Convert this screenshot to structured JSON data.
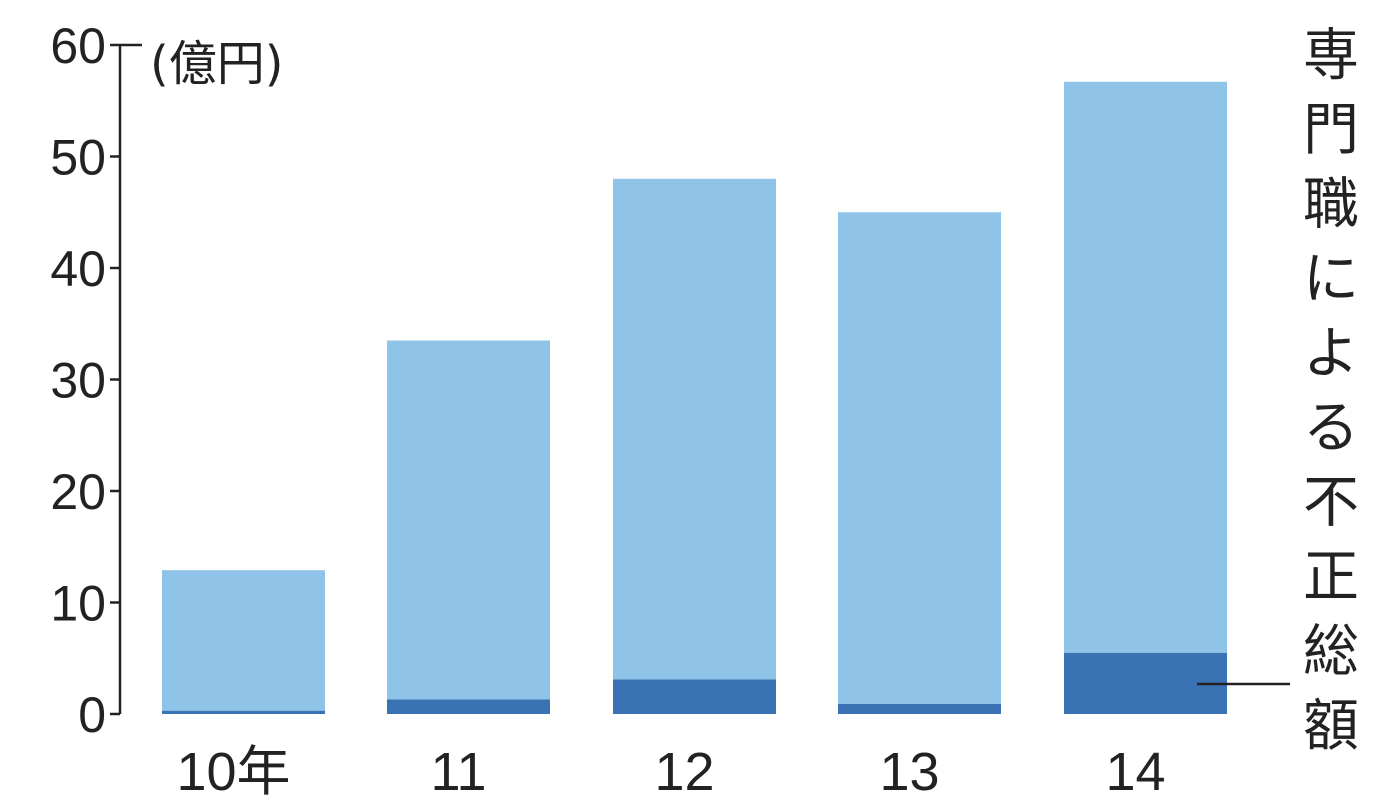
{
  "chart_data": {
    "type": "bar",
    "stacked": true,
    "categories": [
      "10年",
      "11",
      "12",
      "13",
      "14"
    ],
    "series": [
      {
        "values": [
          0.3,
          1.3,
          3.1,
          0.9,
          5.5
        ],
        "color": "#3a73b4"
      },
      {
        "values": [
          12.6,
          32.2,
          44.9,
          44.1,
          51.2
        ],
        "color": "#8fc4e8"
      }
    ],
    "totals": [
      12.9,
      33.5,
      48.0,
      45.0,
      56.7
    ],
    "ylim": [
      0,
      60
    ],
    "yticks": [
      0,
      10,
      20,
      30,
      40,
      50,
      60
    ],
    "unit_label": "(億円)",
    "annotation": "専門職による不正総額",
    "annotation_target": "series-0-bar-4",
    "grid": false,
    "axis_color": "#222222"
  }
}
